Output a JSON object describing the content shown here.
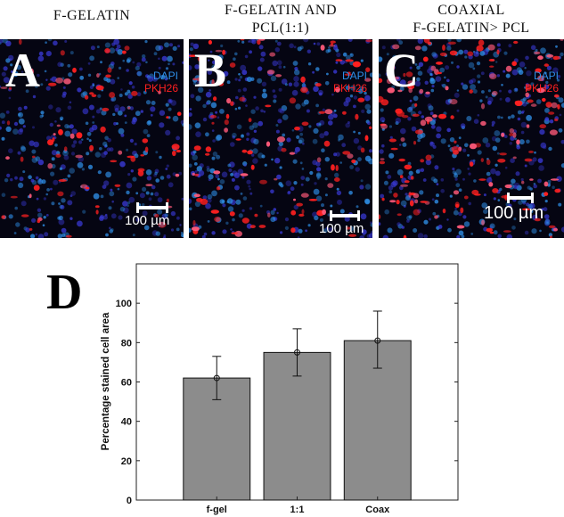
{
  "panels": [
    {
      "letter": "A",
      "title_lines": [
        "F-GELATIN"
      ],
      "stain_dapi": "DAPI",
      "stain_pkh": "PKH26",
      "scale_label": "100 µm"
    },
    {
      "letter": "B",
      "title_lines": [
        "F-GELATIN AND",
        "PCL(1:1)"
      ],
      "stain_dapi": "DAPI",
      "stain_pkh": "PKH26",
      "scale_label": "100 µm"
    },
    {
      "letter": "C",
      "title_lines": [
        "COAXIAL",
        "F-GELATIN> PCL"
      ],
      "stain_dapi": "DAPI",
      "stain_pkh": "PKH26",
      "scale_label": "100 µm"
    }
  ],
  "chart_panel_letter": "D",
  "colors": {
    "bar_fill": "#8c8c8c",
    "bar_stroke": "#111111",
    "dapi": "#2f8fe8",
    "pkh26": "#ff2020",
    "micro_bg": "#050512"
  },
  "chart_data": {
    "type": "bar",
    "categories": [
      "f-gel",
      "1:1",
      "Coax"
    ],
    "values": [
      62,
      75,
      81
    ],
    "error_low": [
      51,
      63,
      67
    ],
    "error_high": [
      73,
      87,
      96
    ],
    "ylabel": "Percentage stained cell area",
    "xlabel": "",
    "ylim": [
      0,
      120
    ],
    "yticks": [
      0,
      20,
      40,
      60,
      80,
      100
    ],
    "grid": false,
    "box": true
  }
}
